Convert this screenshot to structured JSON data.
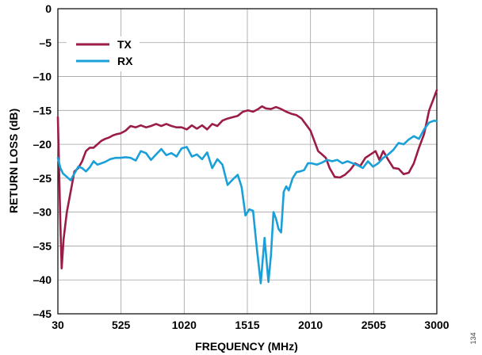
{
  "chart_data": {
    "type": "line",
    "xlabel": "FREQUENCY (MHz)",
    "ylabel": "RETURN LOSS (dB)",
    "xlim": [
      30,
      3000
    ],
    "ylim": [
      -45,
      0
    ],
    "xticks": [
      30,
      525,
      1020,
      1515,
      2010,
      2505,
      3000
    ],
    "yticks": [
      0,
      -5,
      -10,
      -15,
      -20,
      -25,
      -30,
      -35,
      -40,
      -45
    ],
    "grid": true,
    "legend_position": "top-left",
    "series": [
      {
        "name": "TX",
        "color": "#9b1d45",
        "x": [
          30,
          40,
          50,
          60,
          75,
          100,
          130,
          160,
          190,
          220,
          250,
          280,
          310,
          340,
          370,
          400,
          430,
          460,
          490,
          520,
          560,
          600,
          640,
          680,
          720,
          760,
          800,
          840,
          880,
          920,
          960,
          1000,
          1040,
          1080,
          1120,
          1160,
          1200,
          1240,
          1280,
          1320,
          1360,
          1400,
          1440,
          1480,
          1520,
          1560,
          1600,
          1630,
          1660,
          1700,
          1740,
          1780,
          1820,
          1860,
          1900,
          1940,
          1980,
          2010,
          2040,
          2070,
          2100,
          2130,
          2160,
          2200,
          2240,
          2280,
          2320,
          2360,
          2400,
          2440,
          2480,
          2520,
          2550,
          2580,
          2620,
          2660,
          2700,
          2740,
          2780,
          2820,
          2860,
          2900,
          2940,
          2970,
          3000
        ],
        "y": [
          -16,
          -24,
          -32,
          -38.3,
          -34,
          -30,
          -27,
          -24,
          -23.5,
          -22.5,
          -21,
          -20.5,
          -20.5,
          -20,
          -19.5,
          -19.2,
          -19,
          -18.7,
          -18.5,
          -18.4,
          -18,
          -17.3,
          -17.5,
          -17.2,
          -17.5,
          -17.3,
          -17,
          -17.3,
          -17,
          -17.3,
          -17.5,
          -17.5,
          -17.8,
          -17.2,
          -17.7,
          -17.2,
          -17.8,
          -17,
          -17.3,
          -16.5,
          -16.2,
          -16,
          -15.8,
          -15.2,
          -15,
          -15.2,
          -14.8,
          -14.4,
          -14.7,
          -14.8,
          -14.5,
          -14.8,
          -15.2,
          -15.5,
          -15.7,
          -16.2,
          -17.2,
          -18,
          -19.5,
          -21,
          -21.5,
          -22,
          -23.5,
          -24.8,
          -24.9,
          -24.5,
          -23.8,
          -22.8,
          -23.2,
          -22,
          -21.5,
          -21,
          -22.3,
          -21,
          -22.3,
          -23.5,
          -23.6,
          -24.4,
          -24.2,
          -22.8,
          -20.5,
          -18.5,
          -15,
          -13.5,
          -12
        ]
      },
      {
        "name": "RX",
        "color": "#1aa0d9",
        "x": [
          30,
          50,
          70,
          100,
          130,
          160,
          190,
          220,
          250,
          280,
          310,
          340,
          370,
          400,
          440,
          480,
          520,
          560,
          600,
          640,
          680,
          720,
          760,
          800,
          840,
          880,
          920,
          960,
          1000,
          1040,
          1080,
          1120,
          1160,
          1200,
          1240,
          1280,
          1320,
          1360,
          1400,
          1440,
          1470,
          1500,
          1530,
          1560,
          1590,
          1620,
          1650,
          1680,
          1700,
          1720,
          1740,
          1760,
          1780,
          1800,
          1820,
          1840,
          1870,
          1900,
          1930,
          1960,
          1990,
          2020,
          2060,
          2100,
          2140,
          2180,
          2220,
          2260,
          2300,
          2340,
          2380,
          2420,
          2460,
          2500,
          2540,
          2580,
          2620,
          2660,
          2700,
          2740,
          2780,
          2820,
          2860,
          2900,
          2940,
          2980,
          3000
        ],
        "y": [
          -22,
          -23.5,
          -24.3,
          -24.8,
          -25.3,
          -24.3,
          -23.3,
          -23.5,
          -24,
          -23.4,
          -22.5,
          -23,
          -22.8,
          -22.6,
          -22.2,
          -22,
          -22,
          -21.9,
          -22,
          -22.4,
          -21,
          -21.3,
          -22.3,
          -21.5,
          -20.7,
          -21.6,
          -21.3,
          -21.8,
          -20.6,
          -20.4,
          -21.8,
          -21.5,
          -22.2,
          -21.2,
          -23.5,
          -22.2,
          -23,
          -26,
          -25.2,
          -24.5,
          -26.3,
          -30.5,
          -29.6,
          -29.8,
          -35.5,
          -40.5,
          -33.8,
          -40.3,
          -36.3,
          -30,
          -31,
          -32.5,
          -33,
          -27,
          -26.2,
          -26.8,
          -25,
          -24.1,
          -24,
          -23.8,
          -22.8,
          -22.8,
          -23,
          -22.7,
          -22.3,
          -22.5,
          -22.3,
          -22.8,
          -22.5,
          -22.8,
          -23.1,
          -23.5,
          -22.5,
          -23.3,
          -22.8,
          -22,
          -21.5,
          -20.8,
          -19.8,
          -20,
          -19.3,
          -18.8,
          -19.2,
          -17.8,
          -16.8,
          -16.5,
          -16.6
        ]
      }
    ]
  },
  "figure_id": "134"
}
